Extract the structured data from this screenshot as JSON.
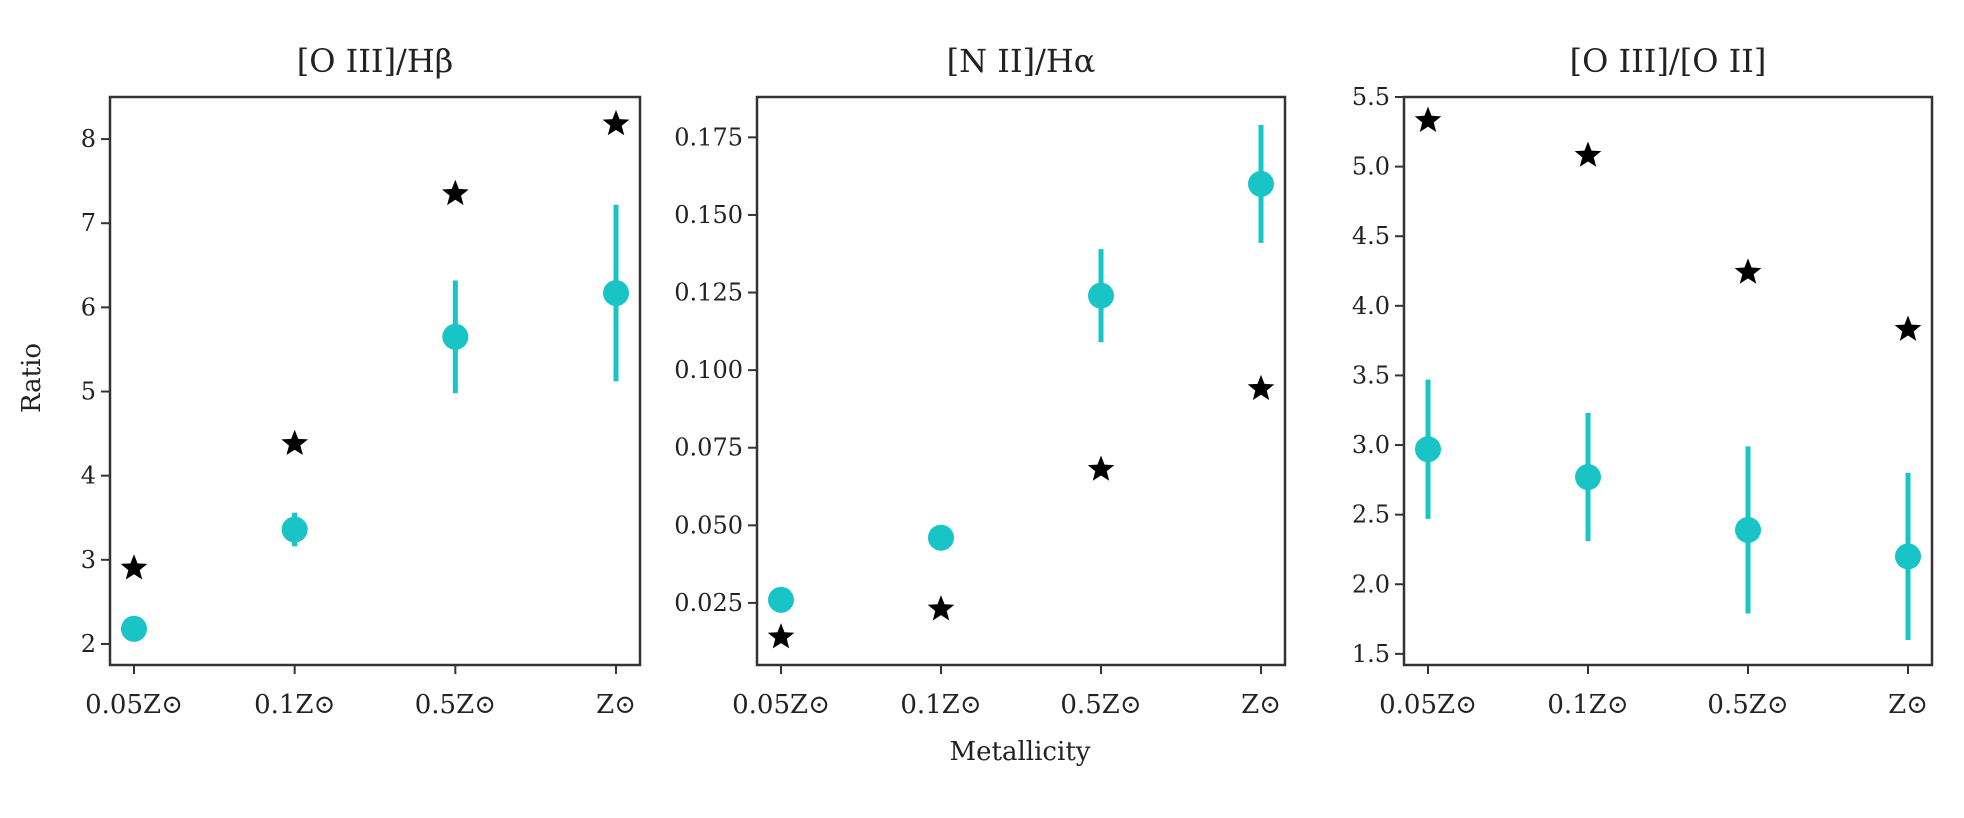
{
  "chart_data": [
    {
      "type": "scatter",
      "title": "[O III]/Hβ",
      "xlabel": "",
      "ylabel": "Ratio",
      "categories": [
        "0.05Z⊙",
        "0.1Z⊙",
        "0.5Z⊙",
        "Z⊙"
      ],
      "ylim": [
        1.75,
        8.5
      ],
      "yticks": [
        2,
        3,
        4,
        5,
        6,
        7,
        8
      ],
      "series": [
        {
          "marker": "circle",
          "color": "#18c4c6",
          "values": [
            2.18,
            3.36,
            5.65,
            6.17
          ],
          "yerr": [
            0.05,
            0.2,
            0.67,
            1.05
          ]
        },
        {
          "marker": "star",
          "color": "#000000",
          "values": [
            2.9,
            4.38,
            7.35,
            8.18
          ]
        }
      ]
    },
    {
      "type": "scatter",
      "title": "[N II]/Hα",
      "xlabel": "Metallicity",
      "ylabel": "",
      "categories": [
        "0.05Z⊙",
        "0.1Z⊙",
        "0.5Z⊙",
        "Z⊙"
      ],
      "ylim": [
        0.005,
        0.188
      ],
      "yticks": [
        0.025,
        0.05,
        0.075,
        0.1,
        0.125,
        0.15,
        0.175
      ],
      "ytick_labels": [
        "0.025",
        "0.050",
        "0.075",
        "0.100",
        "0.125",
        "0.150",
        "0.175"
      ],
      "series": [
        {
          "marker": "circle",
          "color": "#18c4c6",
          "values": [
            0.026,
            0.046,
            0.124,
            0.16
          ],
          "yerr": [
            0.001,
            0.001,
            0.015,
            0.019
          ]
        },
        {
          "marker": "star",
          "color": "#000000",
          "values": [
            0.014,
            0.023,
            0.068,
            0.094
          ]
        }
      ]
    },
    {
      "type": "scatter",
      "title": "[O III]/[O II]",
      "xlabel": "",
      "ylabel": "",
      "categories": [
        "0.05Z⊙",
        "0.1Z⊙",
        "0.5Z⊙",
        "Z⊙"
      ],
      "ylim": [
        1.42,
        5.5
      ],
      "yticks": [
        1.5,
        2.0,
        2.5,
        3.0,
        3.5,
        4.0,
        4.5,
        5.0,
        5.5
      ],
      "ytick_labels": [
        "1.5",
        "2.0",
        "2.5",
        "3.0",
        "3.5",
        "4.0",
        "4.5",
        "5.0",
        "5.5"
      ],
      "series": [
        {
          "marker": "circle",
          "color": "#18c4c6",
          "values": [
            2.97,
            2.77,
            2.39,
            2.2
          ],
          "yerr": [
            0.5,
            0.46,
            0.6,
            0.6
          ]
        },
        {
          "marker": "star",
          "color": "#000000",
          "values": [
            5.33,
            5.08,
            4.24,
            3.83
          ]
        }
      ]
    }
  ]
}
